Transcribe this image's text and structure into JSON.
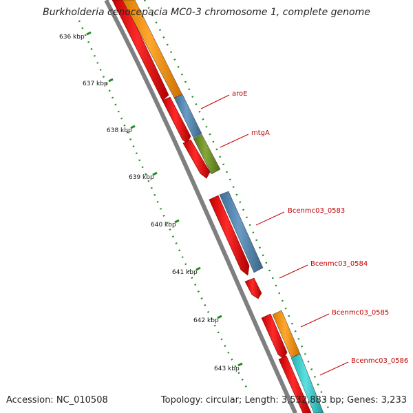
{
  "title": "Burkholderia cenocepacia MC0-3 chromosome 1, complete genome",
  "footer": {
    "accession": "Accession: NC_010508",
    "summary": "Topology: circular; Length: 3,532,883 bp; Genes: 3,233"
  },
  "ticks": [
    "636 kbp",
    "637 kbp",
    "638 kbp",
    "639 kbp",
    "640 kbp",
    "641 kbp",
    "642 kbp",
    "643 kbp"
  ],
  "gene_labels": [
    "aroE",
    "mtgA",
    "Bcenmc03_0583",
    "Bcenmc03_0584",
    "Bcenmc03_0585",
    "Bcenmc03_0586"
  ],
  "colors": {
    "cds": "#ff0000",
    "orange": "#ff9900",
    "blue": "#4f86b4",
    "green": "#6b8e23",
    "cyan": "#33cccc",
    "backbone": "#808080",
    "tick": "#228b22",
    "label": "#c00000"
  }
}
